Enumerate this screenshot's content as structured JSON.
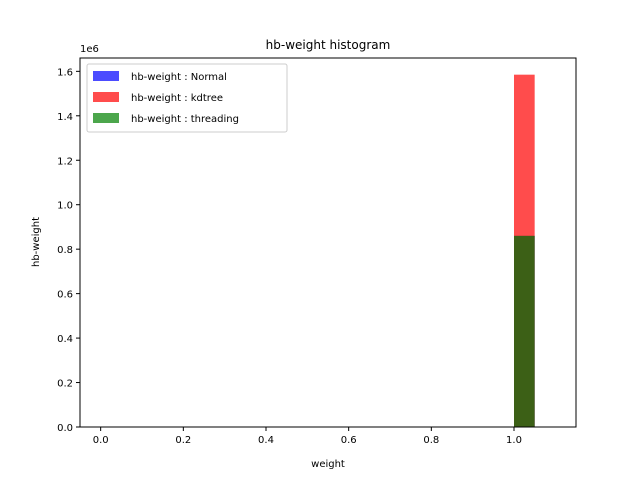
{
  "chart_data": {
    "type": "bar",
    "title": "hb-weight histogram",
    "xlabel": "weight",
    "ylabel": "hb-weight",
    "y_multiplier_label": "1e6",
    "xlim": [
      -0.05,
      1.15
    ],
    "ylim": [
      0,
      1660000
    ],
    "x_ticks": [
      0.0,
      0.2,
      0.4,
      0.6,
      0.8,
      1.0
    ],
    "x_tick_labels": [
      "0.0",
      "0.2",
      "0.4",
      "0.6",
      "0.8",
      "1.0"
    ],
    "y_ticks": [
      0,
      200000,
      400000,
      600000,
      800000,
      1000000,
      1200000,
      1400000,
      1600000
    ],
    "y_tick_labels": [
      "0.0",
      "0.2",
      "0.4",
      "0.6",
      "0.8",
      "1.0",
      "1.2",
      "1.4",
      "1.6"
    ],
    "grid": false,
    "legend_position": "top-left",
    "series": [
      {
        "name": "hb-weight : Normal",
        "color": "#0000ff",
        "opacity": 0.7,
        "bins": [
          {
            "x0": 1.0,
            "x1": 1.05,
            "value": 860000
          }
        ]
      },
      {
        "name": "hb-weight : kdtree",
        "color": "#ff0000",
        "opacity": 0.7,
        "bins": [
          {
            "x0": 1.0,
            "x1": 1.05,
            "value": 1585000
          }
        ]
      },
      {
        "name": "hb-weight : threading",
        "color": "#008000",
        "opacity": 0.7,
        "bins": [
          {
            "x0": 1.0,
            "x1": 1.05,
            "value": 860000
          }
        ]
      }
    ]
  }
}
